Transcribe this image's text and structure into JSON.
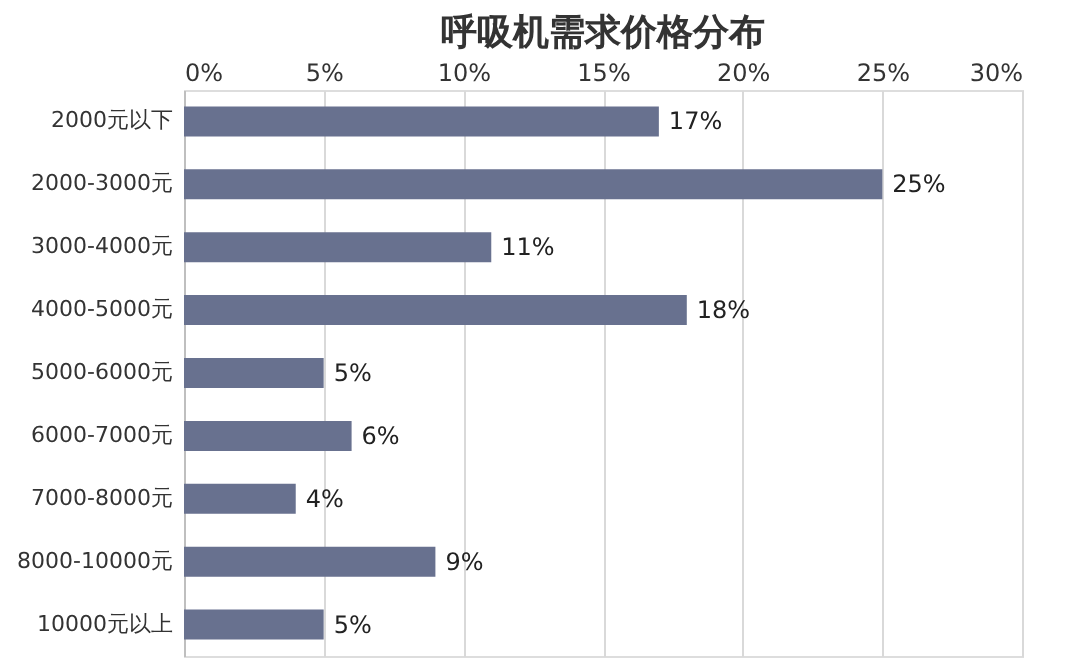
{
  "chart_data": {
    "type": "bar",
    "orientation": "horizontal",
    "title": "呼吸机需求价格分布",
    "categories": [
      "2000元以下",
      "2000-3000元",
      "3000-4000元",
      "4000-5000元",
      "5000-6000元",
      "6000-7000元",
      "7000-8000元",
      "8000-10000元",
      "10000元以上"
    ],
    "values": [
      17,
      25,
      11,
      18,
      5,
      6,
      4,
      9,
      5
    ],
    "value_labels": [
      "17%",
      "25%",
      "11%",
      "18%",
      "5%",
      "6%",
      "4%",
      "9%",
      "5%"
    ],
    "color": "#68718f",
    "xlim": [
      0,
      30
    ],
    "xticks": [
      {
        "value": 0,
        "label": "0%"
      },
      {
        "value": 5,
        "label": "5%"
      },
      {
        "value": 10,
        "label": "10%"
      },
      {
        "value": 15,
        "label": "15%"
      },
      {
        "value": 20,
        "label": "20%"
      },
      {
        "value": 25,
        "label": "25%"
      },
      {
        "value": 30,
        "label": "30%"
      }
    ],
    "grid": "x"
  }
}
